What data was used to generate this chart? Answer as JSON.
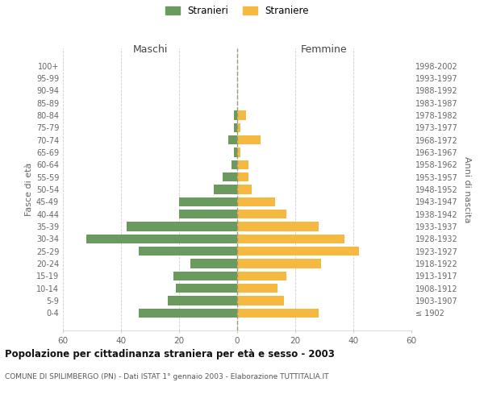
{
  "age_groups": [
    "100+",
    "95-99",
    "90-94",
    "85-89",
    "80-84",
    "75-79",
    "70-74",
    "65-69",
    "60-64",
    "55-59",
    "50-54",
    "45-49",
    "40-44",
    "35-39",
    "30-34",
    "25-29",
    "20-24",
    "15-19",
    "10-14",
    "5-9",
    "0-4"
  ],
  "birth_years": [
    "≤ 1902",
    "1903-1907",
    "1908-1912",
    "1913-1917",
    "1918-1922",
    "1923-1927",
    "1928-1932",
    "1933-1937",
    "1938-1942",
    "1943-1947",
    "1948-1952",
    "1953-1957",
    "1958-1962",
    "1963-1967",
    "1968-1972",
    "1973-1977",
    "1978-1982",
    "1983-1987",
    "1988-1992",
    "1993-1997",
    "1998-2002"
  ],
  "maschi": [
    0,
    0,
    0,
    0,
    1,
    1,
    3,
    1,
    2,
    5,
    8,
    20,
    20,
    38,
    52,
    34,
    16,
    22,
    21,
    24,
    34
  ],
  "femmine": [
    0,
    0,
    0,
    0,
    3,
    1,
    8,
    1,
    4,
    4,
    5,
    13,
    17,
    28,
    37,
    42,
    29,
    17,
    14,
    16,
    28
  ],
  "maschi_color": "#6b9a5e",
  "femmine_color": "#f5b942",
  "background_color": "#ffffff",
  "grid_color": "#cccccc",
  "title": "Popolazione per cittadinanza straniera per età e sesso - 2003",
  "subtitle": "COMUNE DI SPILIMBERGO (PN) - Dati ISTAT 1° gennaio 2003 - Elaborazione TUTTITALIA.IT",
  "xlabel_left": "Maschi",
  "xlabel_right": "Femmine",
  "ylabel_left": "Fasce di età",
  "ylabel_right": "Anni di nascita",
  "legend_maschi": "Stranieri",
  "legend_femmine": "Straniere",
  "xlim": 60
}
